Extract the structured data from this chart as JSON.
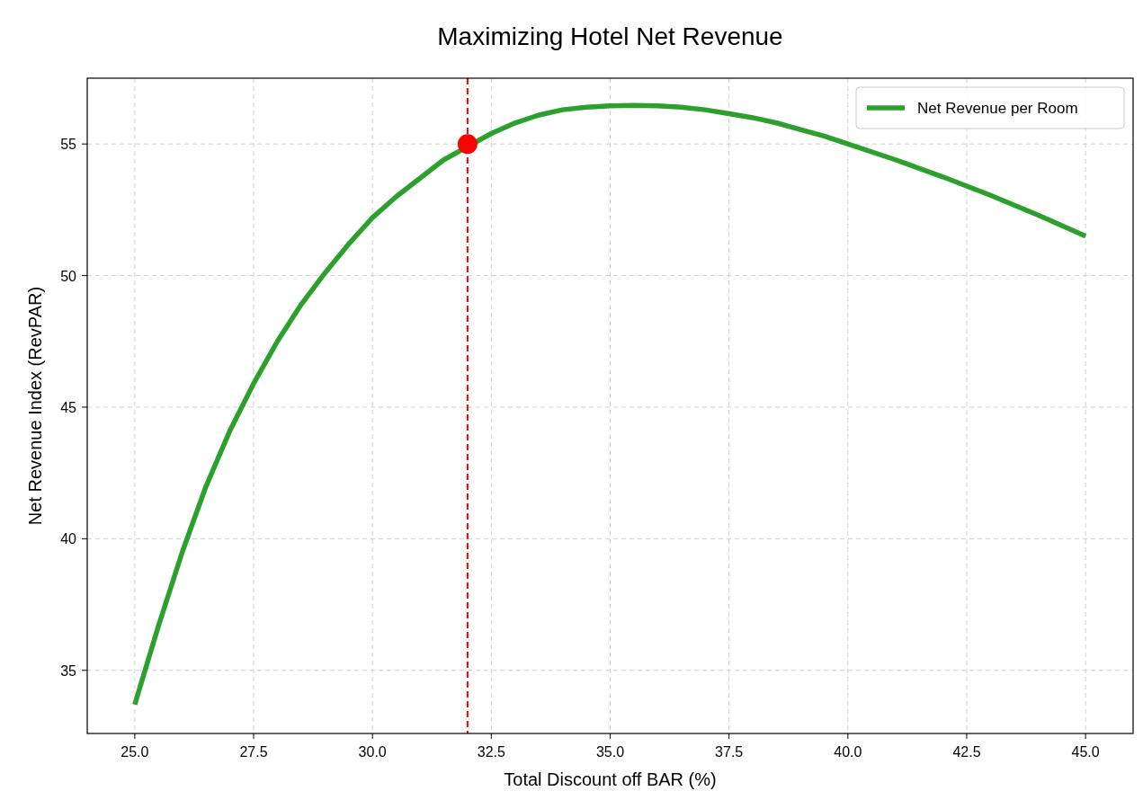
{
  "chart_data": {
    "type": "line",
    "title": "Maximizing Hotel Net Revenue",
    "xlabel": "Total Discount off BAR (%)",
    "ylabel": "Net Revenue Index (RevPAR)",
    "xlim": [
      24,
      46
    ],
    "xticks": [
      {
        "value": 25,
        "label": "25.0"
      },
      {
        "value": 27.5,
        "label": "27.5"
      },
      {
        "value": 30,
        "label": "30.0"
      },
      {
        "value": 32.5,
        "label": "32.5"
      },
      {
        "value": 35,
        "label": "35.0"
      },
      {
        "value": 37.5,
        "label": "37.5"
      },
      {
        "value": 40,
        "label": "40.0"
      },
      {
        "value": 42.5,
        "label": "42.5"
      },
      {
        "value": 45,
        "label": "45.0"
      }
    ],
    "ylim": [
      32.6,
      57.5
    ],
    "yticks": [
      35,
      40,
      45,
      50,
      55
    ],
    "grid": true,
    "legend": "top right",
    "series": [
      {
        "name": "Net Revenue per Room",
        "color": "#2ca02c",
        "x": [
          25,
          25.5,
          26,
          26.5,
          27,
          27.5,
          28,
          28.5,
          29,
          29.5,
          30,
          30.5,
          31,
          31.5,
          32.5,
          33,
          33.5,
          34,
          34.5,
          35,
          35.5,
          36,
          36.5,
          37,
          37.5,
          38,
          38.5,
          39,
          39.5,
          40,
          41,
          42,
          43,
          44,
          45
        ],
        "values": [
          33.7,
          36.7,
          39.5,
          42.0,
          44.1,
          45.9,
          47.5,
          48.9,
          50.1,
          51.2,
          52.2,
          53.0,
          53.7,
          54.4,
          55.4,
          55.8,
          56.1,
          56.3,
          56.4,
          56.45,
          56.47,
          56.45,
          56.4,
          56.3,
          56.15,
          56.0,
          55.8,
          55.55,
          55.3,
          55.0,
          54.4,
          53.75,
          53.05,
          52.3,
          51.5
        ]
      },
      {
        "type": "scatter",
        "color": "#ff0000",
        "marker": "circle",
        "x": [
          32
        ],
        "values": [
          55.0
        ]
      }
    ],
    "ref_lines": [
      {
        "axis": "x",
        "value": 32,
        "color": "#ff0000",
        "line_style": "dashed"
      }
    ]
  }
}
